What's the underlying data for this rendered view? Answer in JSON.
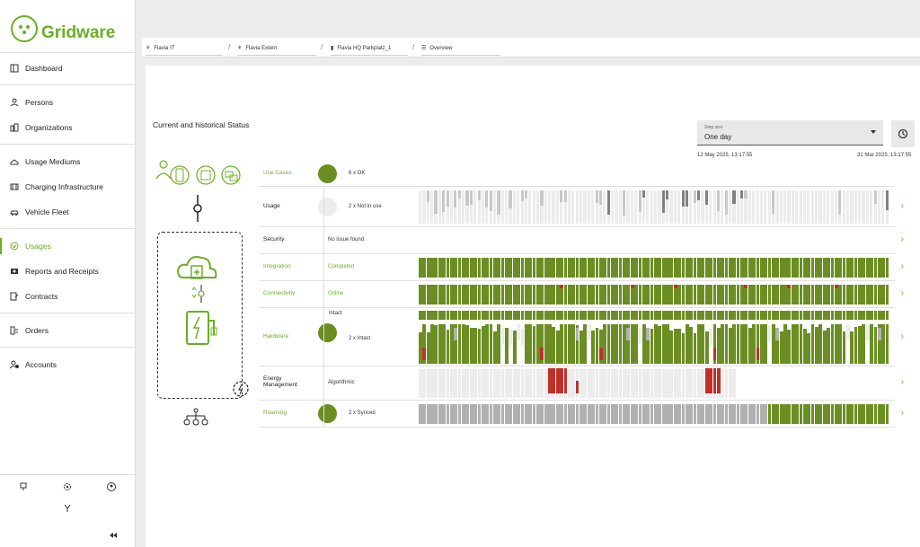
{
  "app": {
    "brand": "Gridware"
  },
  "sidebar": {
    "items": [
      {
        "label": "Dashboard",
        "icon": "dashboard-icon"
      },
      {
        "label": "Persons",
        "icon": "person-icon"
      },
      {
        "label": "Organizations",
        "icon": "organization-icon"
      },
      {
        "label": "Usage Mediums",
        "icon": "card-icon"
      },
      {
        "label": "Charging Infrastructure",
        "icon": "charging-icon"
      },
      {
        "label": "Vehicle Fleet",
        "icon": "car-icon"
      },
      {
        "label": "Usages",
        "icon": "usage-icon",
        "active": true
      },
      {
        "label": "Reports and Receipts",
        "icon": "report-icon"
      },
      {
        "label": "Contracts",
        "icon": "contract-icon"
      },
      {
        "label": "Orders",
        "icon": "orders-icon"
      },
      {
        "label": "Accounts",
        "icon": "accounts-icon"
      }
    ],
    "collapse_icon": "double-chevron-left-icon"
  },
  "breadcrumb": [
    {
      "label": "Flavia IT",
      "icon": "org-icon"
    },
    {
      "label": "Flavia Extern",
      "icon": "org-icon"
    },
    {
      "label": "Flavia HQ Parkplatz_1",
      "icon": "station-icon"
    },
    {
      "label": "Overview",
      "icon": "list-icon"
    }
  ],
  "main": {
    "title": "Current and historical Status",
    "step": {
      "label": "Step size",
      "value": "One day"
    },
    "date_start": "12 May 2025, 13:17:55",
    "date_end": "31 Mar 2025, 13:17:55"
  },
  "colors": {
    "green": "#6b8e23",
    "red": "#c0302a",
    "gray": "#b0b0b0",
    "light": "#ececec",
    "dark": "#808080",
    "brand": "#6ab023"
  },
  "rows": [
    {
      "name": "Use Cases",
      "status": "6 x OK",
      "dot": "#6b8e23",
      "green": true
    },
    {
      "name": "Usage",
      "status": "2 x Not in use",
      "dot": "#ececec",
      "green": false
    },
    {
      "name": "Security",
      "status": "No issue found",
      "green": false
    },
    {
      "name": "Integration",
      "status": "Completed",
      "green": true
    },
    {
      "name": "Connectivity",
      "status": "Online",
      "green": true
    },
    {
      "name": "Hardware",
      "status": "2 x Intact",
      "sub": "Intact",
      "dot": "#6b8e23",
      "green": true
    },
    {
      "name": "Energy Management",
      "status": "Algorithmic",
      "green": false
    },
    {
      "name": "Roaming",
      "status": "2 x Synced",
      "dot": "#6b8e23",
      "green": true
    }
  ]
}
